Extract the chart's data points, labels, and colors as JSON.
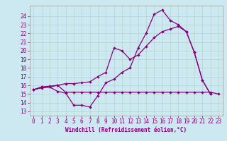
{
  "xlabel": "Windchill (Refroidissement éolien,°C)",
  "bg_color": "#cce8f0",
  "line_color": "#880077",
  "xlim": [
    -0.5,
    23.5
  ],
  "ylim": [
    12.5,
    25.2
  ],
  "yticks": [
    13,
    14,
    15,
    16,
    17,
    18,
    19,
    20,
    21,
    22,
    23,
    24
  ],
  "xticks": [
    0,
    1,
    2,
    3,
    4,
    5,
    6,
    7,
    8,
    9,
    10,
    11,
    12,
    13,
    14,
    15,
    16,
    17,
    18,
    19,
    20,
    21,
    22,
    23
  ],
  "line1_y": [
    15.5,
    15.8,
    15.8,
    15.3,
    15.1,
    13.7,
    13.7,
    13.5,
    14.8,
    16.3,
    16.7,
    17.5,
    18.0,
    20.3,
    22.0,
    24.2,
    24.7,
    23.5,
    23.0,
    22.2,
    19.8,
    16.6,
    15.0,
    null
  ],
  "line2_y": [
    15.5,
    15.7,
    15.8,
    16.0,
    15.2,
    15.2,
    15.2,
    15.2,
    15.2,
    15.2,
    15.2,
    15.2,
    15.2,
    15.2,
    15.2,
    15.2,
    15.2,
    15.2,
    15.2,
    15.2,
    15.2,
    15.2,
    15.2,
    15.0
  ],
  "line3_y": [
    15.5,
    15.8,
    15.9,
    16.0,
    16.2,
    16.2,
    16.3,
    16.4,
    17.0,
    17.5,
    20.3,
    20.0,
    19.0,
    19.5,
    20.5,
    21.5,
    22.2,
    22.5,
    22.8,
    22.2,
    19.8,
    16.6,
    15.0,
    null
  ],
  "tick_fontsize": 5.5,
  "xlabel_fontsize": 5.5,
  "marker_size": 2.2,
  "line_width": 0.9
}
